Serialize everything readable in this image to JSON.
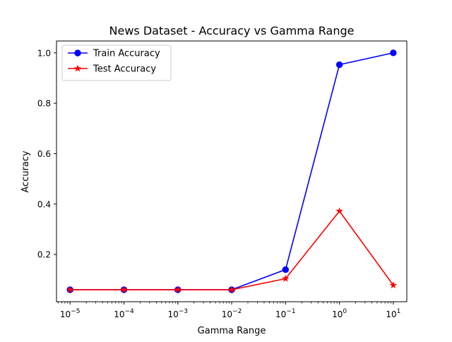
{
  "chart_data": {
    "type": "line",
    "title": "News Dataset - Accuracy vs Gamma Range",
    "xlabel": "Gamma Range",
    "ylabel": "Accuracy",
    "x_scale": "log",
    "x": [
      1e-05,
      0.0001,
      0.001,
      0.01,
      0.1,
      1,
      10
    ],
    "x_tick_labels": [
      {
        "base": "10",
        "exp": "−5"
      },
      {
        "base": "10",
        "exp": "−4"
      },
      {
        "base": "10",
        "exp": "−3"
      },
      {
        "base": "10",
        "exp": "−2"
      },
      {
        "base": "10",
        "exp": "−1"
      },
      {
        "base": "10",
        "exp": "0"
      },
      {
        "base": "10",
        "exp": "1"
      }
    ],
    "y_ticks": [
      0.2,
      0.4,
      0.6,
      0.8,
      1.0
    ],
    "y_tick_labels": [
      "0.2",
      "0.4",
      "0.6",
      "0.8",
      "1.0"
    ],
    "xlim": [
      5.6e-06,
      17.8
    ],
    "ylim": [
      0.0125,
      1.047
    ],
    "grid": false,
    "legend_position": "top-left",
    "series": [
      {
        "name": "Train Accuracy",
        "color": "#0000ff",
        "marker": "circle",
        "values": [
          0.06,
          0.06,
          0.06,
          0.06,
          0.14,
          0.953,
          1.0
        ]
      },
      {
        "name": "Test Accuracy",
        "color": "#ff0000",
        "marker": "star",
        "values": [
          0.06,
          0.06,
          0.06,
          0.06,
          0.104,
          0.372,
          0.078
        ]
      }
    ]
  }
}
